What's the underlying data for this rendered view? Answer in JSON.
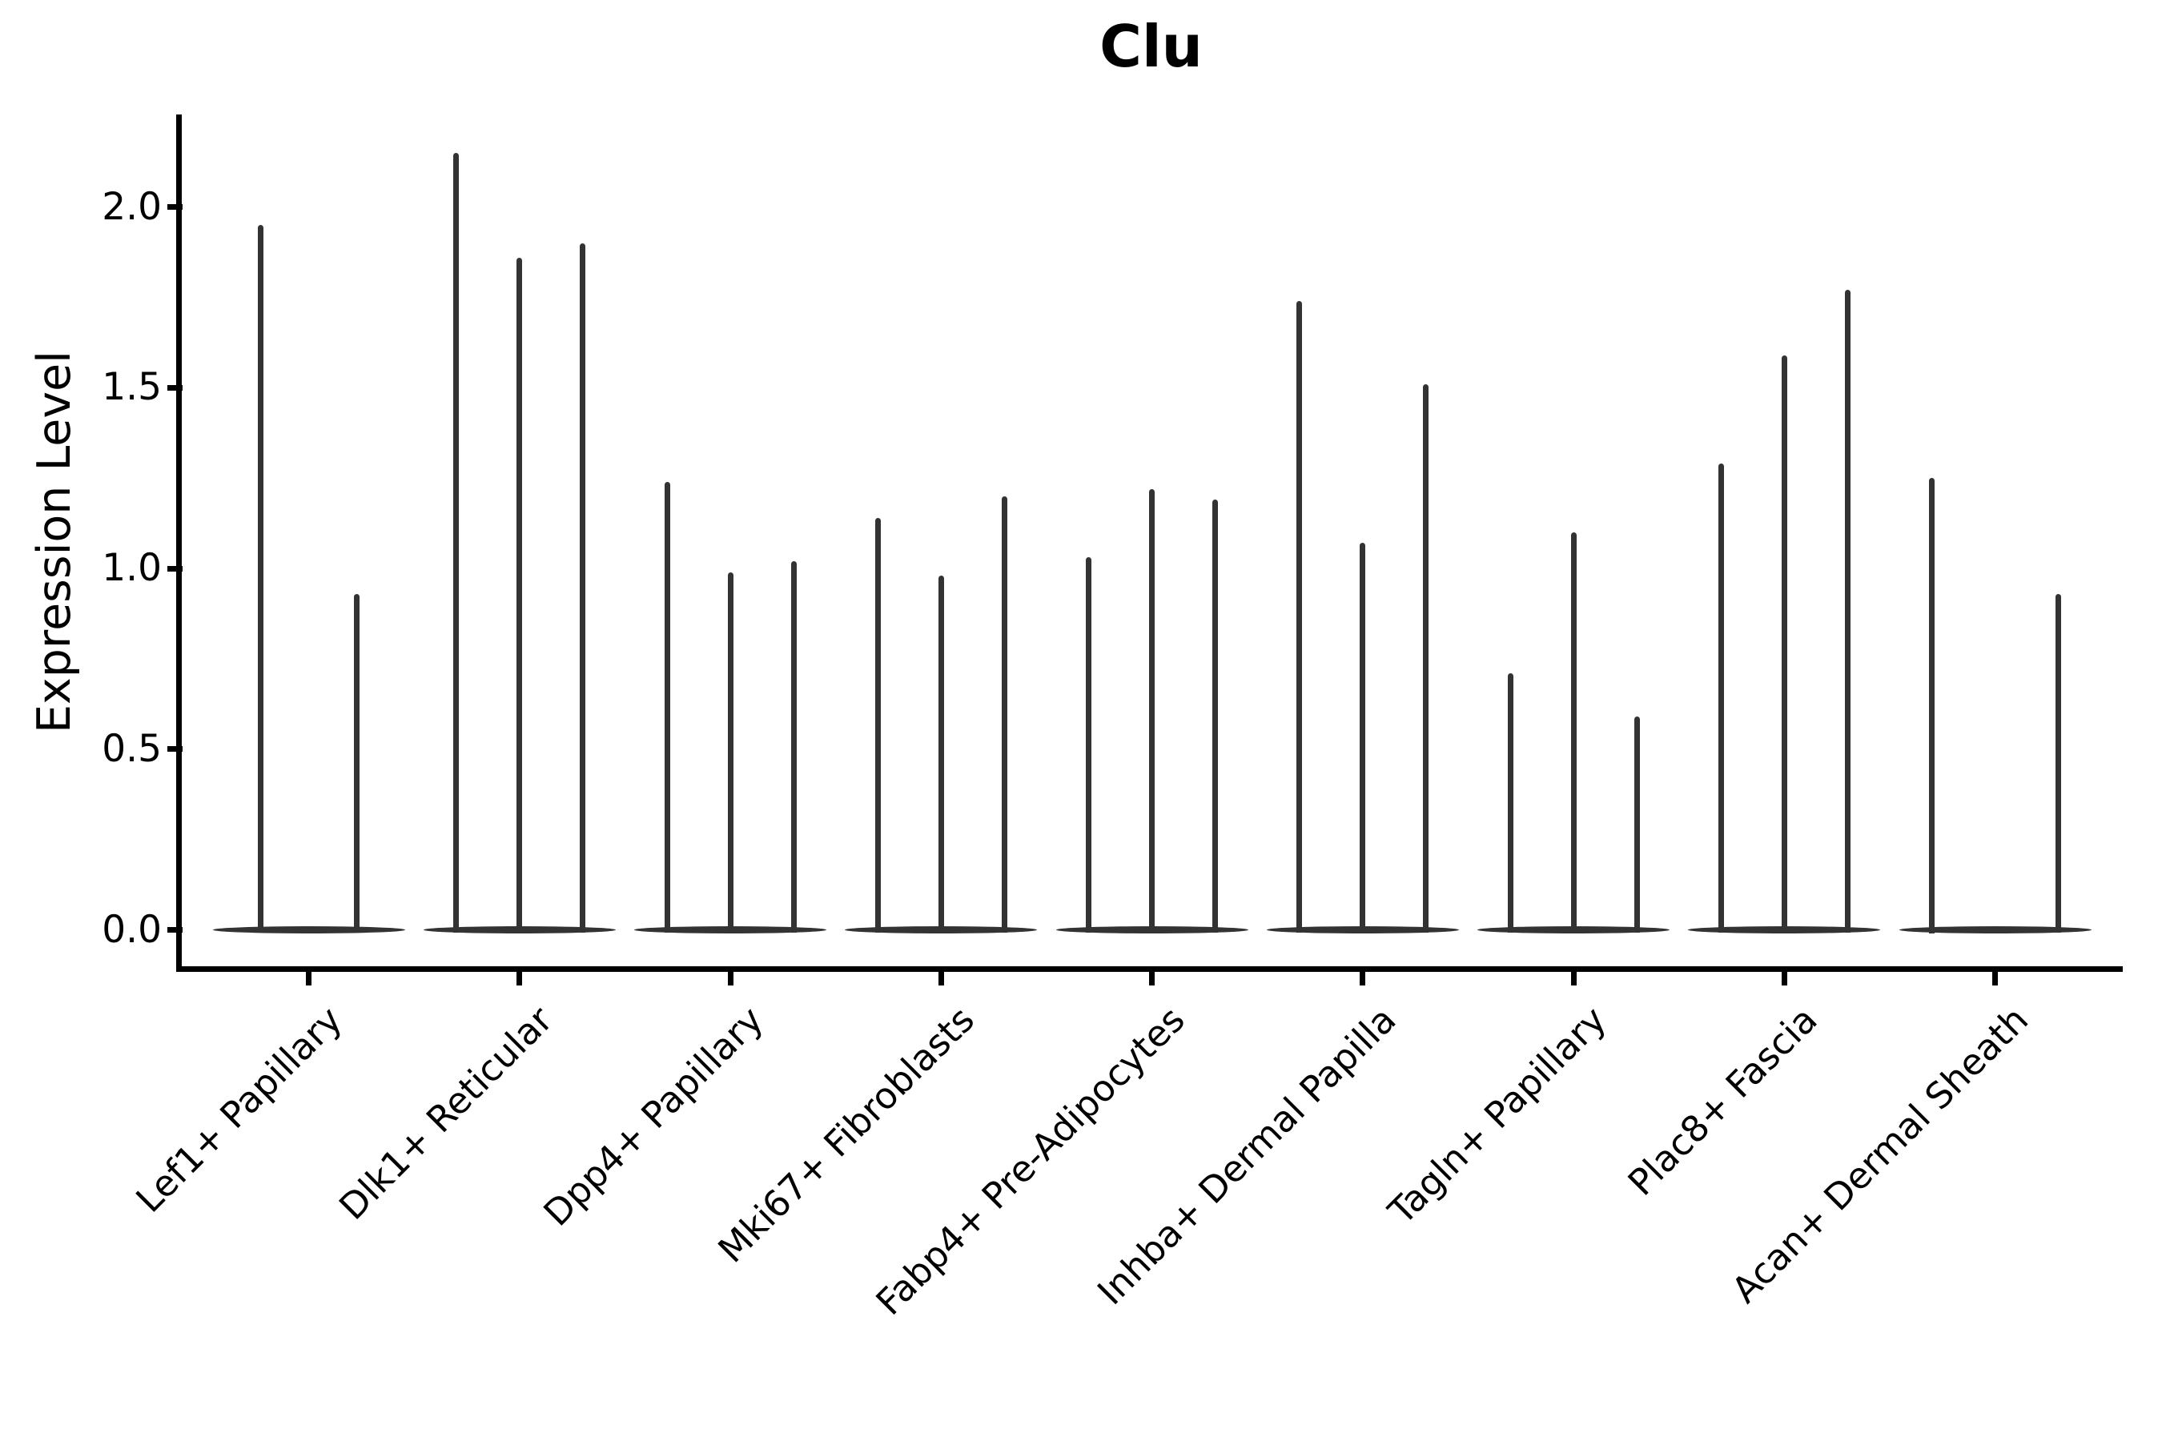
{
  "title": "Clu",
  "ylabel": "Expression Level",
  "chart_data": {
    "type": "violin",
    "title": "Clu",
    "xlabel": "",
    "ylabel": "Expression Level",
    "ylim": [
      -0.1,
      2.25
    ],
    "yticks": [
      0.0,
      0.5,
      1.0,
      1.5,
      2.0
    ],
    "ytick_labels": [
      "0.0",
      "0.5",
      "1.0",
      "1.5",
      "2.0"
    ],
    "grid": false,
    "legend_position": "none",
    "violin_color": "#333333",
    "axis_color": "#000000",
    "categories": [
      "Lef1+ Papillary",
      "Dlk1+ Reticular",
      "Dpp4+ Papillary",
      "Mki67+ Fibroblasts",
      "Fabp4+ Pre-Adipocytes",
      "Inhba+ Dermal Papilla",
      "Tagln+ Papillary",
      "Plac8+ Fascia",
      "Acan+ Dermal Sheath"
    ],
    "description": "Each category shows thin vertical violins: most density at 0 (wide flat base) with a narrow spike up to the listed maximum expression value.",
    "groups": [
      {
        "category": "Lef1+ Papillary",
        "violin_maxima": [
          1.95,
          0.93
        ],
        "slot_offsets": [
          -60,
          60
        ]
      },
      {
        "category": "Dlk1+ Reticular",
        "violin_maxima": [
          2.15,
          1.86,
          1.9
        ],
        "slot_offsets": [
          -79,
          0,
          79
        ]
      },
      {
        "category": "Dpp4+ Papillary",
        "violin_maxima": [
          1.24,
          0.99,
          1.02
        ],
        "slot_offsets": [
          -79,
          0,
          79
        ]
      },
      {
        "category": "Mki67+ Fibroblasts",
        "violin_maxima": [
          1.14,
          0.98,
          1.2
        ],
        "slot_offsets": [
          -79,
          0,
          79
        ]
      },
      {
        "category": "Fabp4+ Pre-Adipocytes",
        "violin_maxima": [
          1.03,
          1.22,
          1.19
        ],
        "slot_offsets": [
          -79,
          0,
          79
        ]
      },
      {
        "category": "Inhba+ Dermal Papilla",
        "violin_maxima": [
          1.74,
          1.07,
          1.51
        ],
        "slot_offsets": [
          -79,
          0,
          79
        ]
      },
      {
        "category": "Tagln+ Papillary",
        "violin_maxima": [
          0.71,
          1.1,
          0.59
        ],
        "slot_offsets": [
          -79,
          0,
          79
        ]
      },
      {
        "category": "Plac8+ Fascia",
        "violin_maxima": [
          1.29,
          1.59,
          1.77
        ],
        "slot_offsets": [
          -79,
          0,
          79
        ]
      },
      {
        "category": "Acan+ Dermal Sheath",
        "violin_maxima": [
          1.25,
          0.93
        ],
        "slot_offsets": [
          -79,
          79
        ]
      }
    ]
  }
}
